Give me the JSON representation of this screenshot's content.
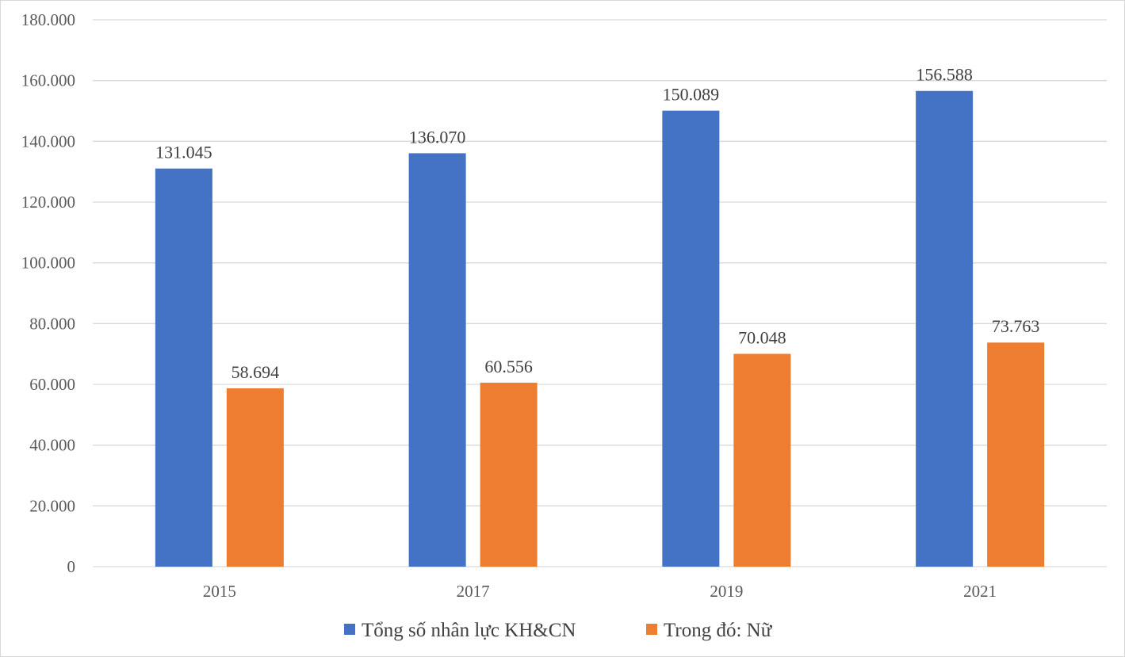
{
  "chart_data": {
    "type": "bar",
    "title": "",
    "xlabel": "",
    "ylabel": "",
    "categories": [
      "2015",
      "2017",
      "2019",
      "2021"
    ],
    "series": [
      {
        "name": "Tổng số nhân lực KH&CN",
        "color": "#4472c4",
        "values": [
          131045,
          136070,
          150089,
          156588
        ],
        "labels": [
          "131.045",
          "136.070",
          "150.089",
          "156.588"
        ]
      },
      {
        "name": "Trong đó: Nữ",
        "color": "#ed7d31",
        "values": [
          58694,
          60556,
          70048,
          73763
        ],
        "labels": [
          "58.694",
          "60.556",
          "70.048",
          "73.763"
        ]
      }
    ],
    "ylim": [
      0,
      180000
    ],
    "yticks": [
      0,
      20000,
      40000,
      60000,
      80000,
      100000,
      120000,
      140000,
      160000,
      180000
    ],
    "ytick_labels": [
      "0",
      "20.000",
      "40.000",
      "60.000",
      "80.000",
      "100.000",
      "120.000",
      "140.000",
      "160.000",
      "180.000"
    ],
    "grid": true,
    "legend": "bottom-center"
  }
}
